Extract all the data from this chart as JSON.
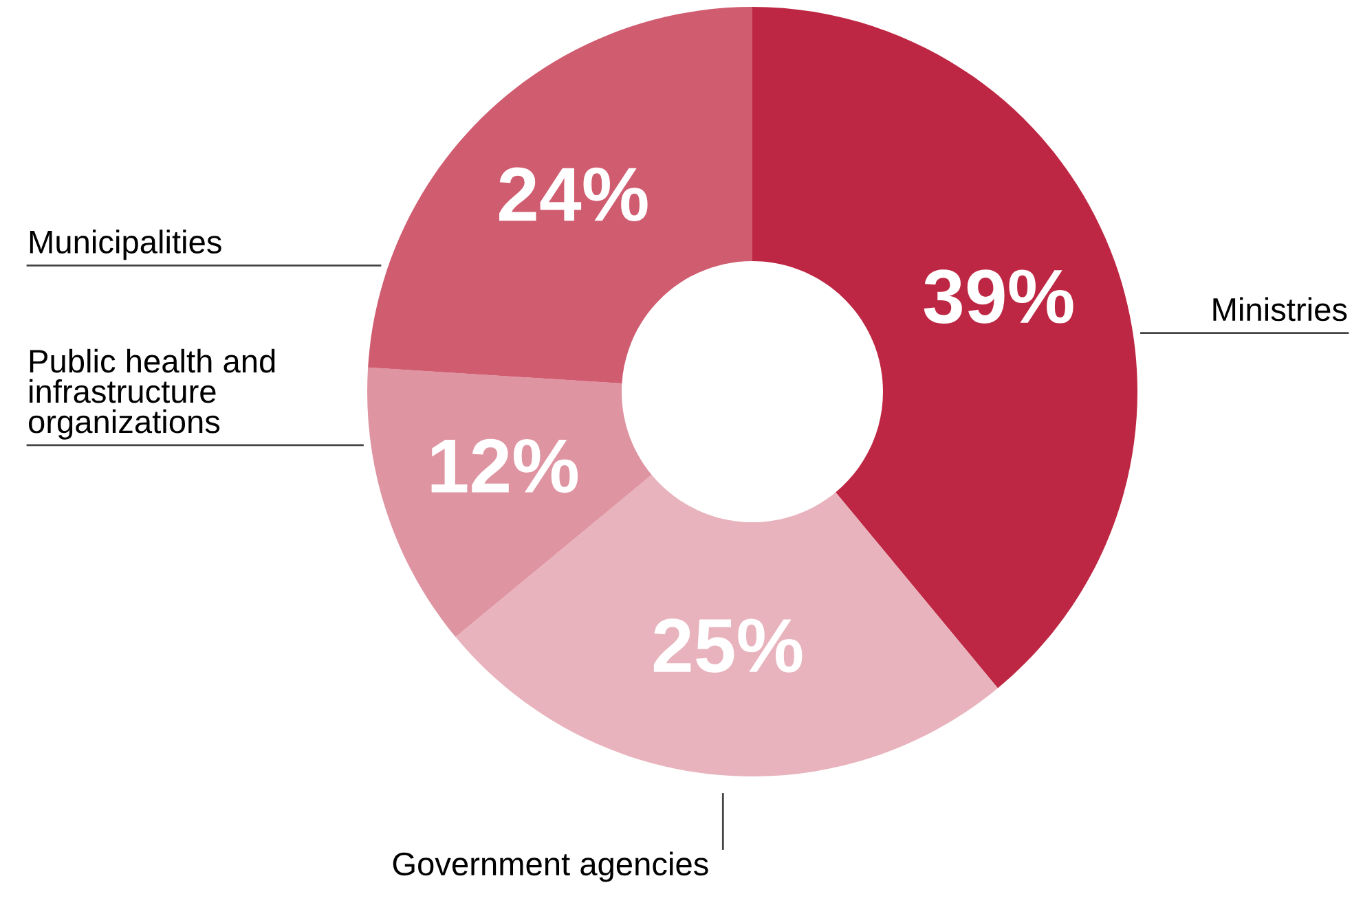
{
  "chart_data": {
    "type": "donut",
    "categories": [
      "Ministries",
      "Government agencies",
      "Public health and\ninfrastructure\norganizations",
      "Municipalities"
    ],
    "values": [
      39,
      25,
      12,
      24
    ],
    "value_labels": [
      "39%",
      "25%",
      "12%",
      "24%"
    ],
    "colors": [
      "#be2743",
      "#e8b3bd",
      "#df94a2",
      "#d05c70"
    ],
    "legend": false
  }
}
